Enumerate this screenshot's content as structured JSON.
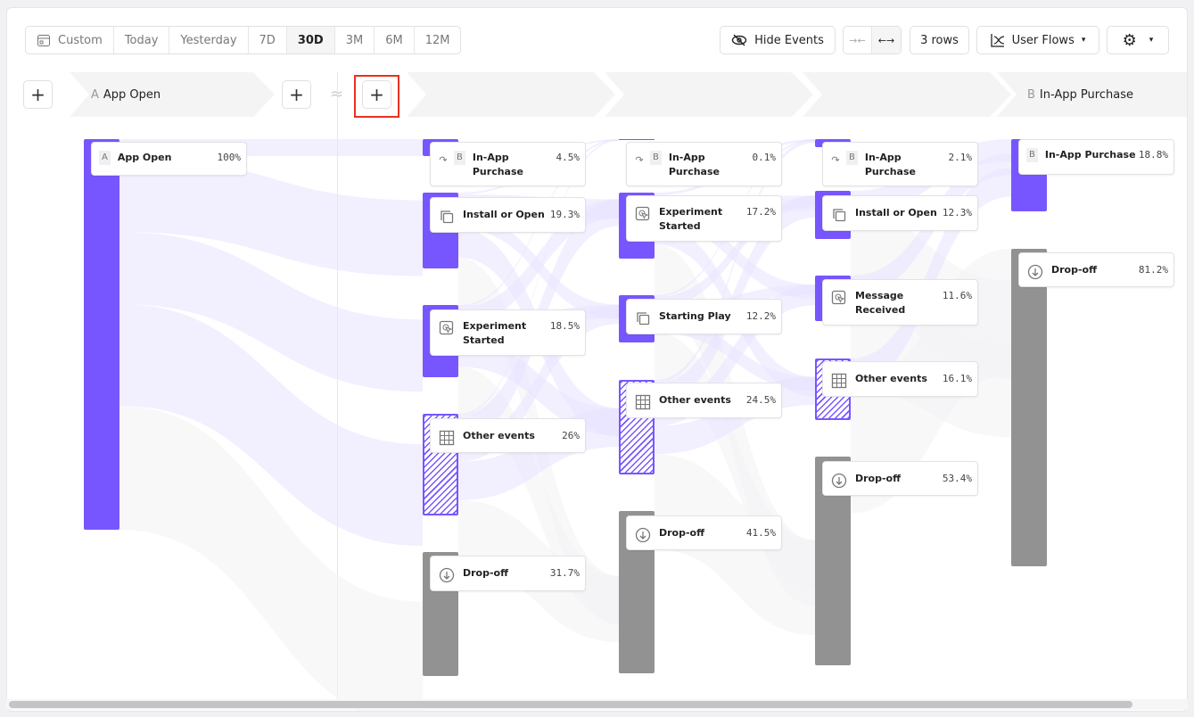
{
  "toolbar": {
    "date_ranges": [
      {
        "label": "Custom",
        "icon": "calendar-icon"
      },
      {
        "label": "Today"
      },
      {
        "label": "Yesterday"
      },
      {
        "label": "7D"
      },
      {
        "label": "30D",
        "selected": true
      },
      {
        "label": "3M"
      },
      {
        "label": "6M"
      },
      {
        "label": "12M"
      }
    ],
    "hide_events": "Hide Events",
    "rows": "3 rows",
    "view": "User Flows",
    "settings_icon": "gear-icon"
  },
  "steps": {
    "a": {
      "letter": "A",
      "label": "App Open"
    },
    "b": {
      "letter": "B",
      "label": "In-App Purchase"
    },
    "gap_symbol": "≈"
  },
  "colors": {
    "event": "#7856ff",
    "dropoff": "#929292",
    "flow": "#e9e5ff",
    "highlight": "#e8321e"
  },
  "columns": [
    [
      {
        "label": "App Open",
        "letter": "A",
        "pct": "100%",
        "type": "event"
      }
    ],
    [
      {
        "label": "In-App Purchase",
        "letter": "B",
        "pct": "4.5%",
        "type": "target"
      },
      {
        "label": "Install or Open",
        "pct": "19.3%",
        "type": "event",
        "icon": "copy-icon"
      },
      {
        "label": "Experiment Started",
        "pct": "18.5%",
        "type": "event",
        "icon": "cursor-click-icon"
      },
      {
        "label": "Other events",
        "pct": "26%",
        "type": "other",
        "icon": "grid-icon"
      },
      {
        "label": "Drop-off",
        "pct": "31.7%",
        "type": "drop",
        "icon": "drop-off-icon"
      }
    ],
    [
      {
        "label": "In-App Purchase",
        "letter": "B",
        "pct": "0.1%",
        "type": "target"
      },
      {
        "label": "Experiment Started",
        "pct": "17.2%",
        "type": "event",
        "icon": "cursor-click-icon"
      },
      {
        "label": "Starting Play",
        "pct": "12.2%",
        "type": "event",
        "icon": "copy-icon"
      },
      {
        "label": "Other events",
        "pct": "24.5%",
        "type": "other",
        "icon": "grid-icon"
      },
      {
        "label": "Drop-off",
        "pct": "41.5%",
        "type": "drop",
        "icon": "drop-off-icon"
      }
    ],
    [
      {
        "label": "In-App Purchase",
        "letter": "B",
        "pct": "2.1%",
        "type": "target"
      },
      {
        "label": "Install or Open",
        "pct": "12.3%",
        "type": "event",
        "icon": "copy-icon"
      },
      {
        "label": "Message Received",
        "pct": "11.6%",
        "type": "event",
        "icon": "cursor-click-icon"
      },
      {
        "label": "Other events",
        "pct": "16.1%",
        "type": "other",
        "icon": "grid-icon"
      },
      {
        "label": "Drop-off",
        "pct": "53.4%",
        "type": "drop",
        "icon": "drop-off-icon"
      }
    ],
    [
      {
        "label": "In-App Purchase",
        "letter": "B",
        "pct": "18.8%",
        "type": "event"
      },
      {
        "label": "Drop-off",
        "pct": "81.2%",
        "type": "drop",
        "icon": "drop-off-icon"
      }
    ]
  ]
}
